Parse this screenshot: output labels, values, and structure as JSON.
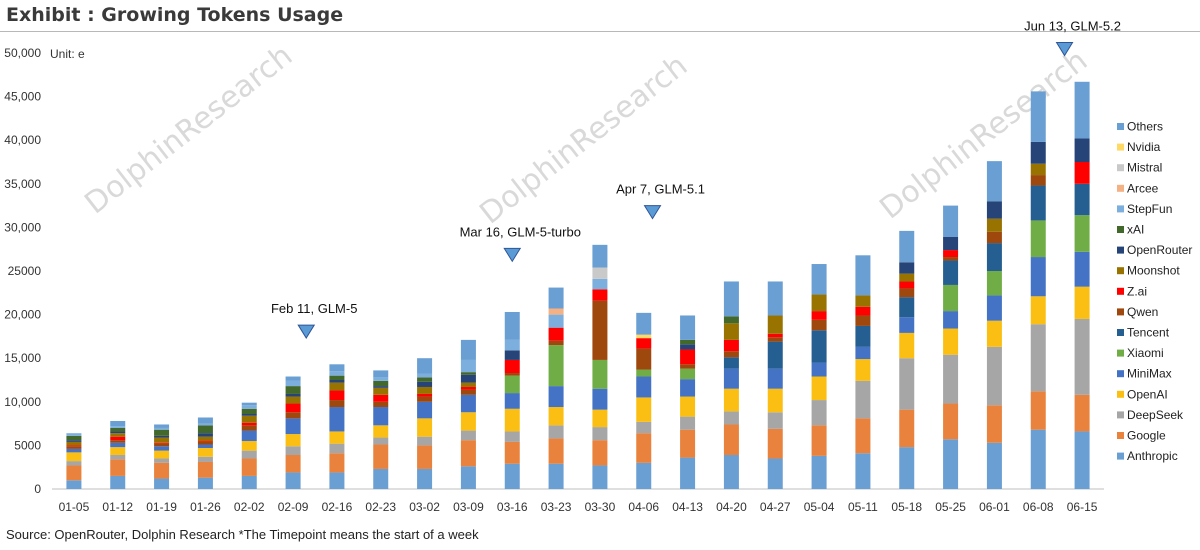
{
  "header": {
    "title": "Exhibit : Growing Tokens Usage"
  },
  "footer": {
    "source": "Source: OpenRouter, Dolphin Research *The Timepoint means the start of a week"
  },
  "watermark": "DolphinResearch",
  "chart_data": {
    "type": "bar",
    "stacked": true,
    "unit_label": "Unit: e",
    "ylim": [
      0,
      50000
    ],
    "yticks": [
      "0",
      "5000",
      "10,000",
      "15,000",
      "20,000",
      "25000",
      "30,000",
      "35,000",
      "40,000",
      "45,000",
      "50,000"
    ],
    "grid": false,
    "legend_position": "right",
    "categories": [
      "01-05",
      "01-12",
      "01-19",
      "01-26",
      "02-02",
      "02-09",
      "02-16",
      "02-23",
      "03-02",
      "03-09",
      "03-16",
      "03-23",
      "03-30",
      "04-06",
      "04-13",
      "04-20",
      "04-27",
      "05-04",
      "05-11",
      "05-18",
      "05-25",
      "06-01",
      "06-08",
      "06-15"
    ],
    "series": [
      {
        "name": "Anthropic",
        "color": "#6a9fd4",
        "values": [
          1000,
          1500,
          1200,
          1300,
          1500,
          1900,
          1900,
          2300,
          2300,
          2600,
          2900,
          2900,
          2700,
          3000,
          3600,
          3900,
          3500,
          3800,
          4100,
          4800,
          5700,
          5300,
          6800,
          6600
        ]
      },
      {
        "name": "Google",
        "color": "#e8823c",
        "values": [
          1700,
          1900,
          1800,
          1800,
          2000,
          2000,
          2200,
          2800,
          2700,
          3000,
          2500,
          2900,
          2900,
          3400,
          3200,
          3500,
          3400,
          3500,
          4000,
          4300,
          4100,
          4300,
          4400,
          4200
        ]
      },
      {
        "name": "DeepSeek",
        "color": "#a6a6a6",
        "values": [
          500,
          500,
          500,
          600,
          900,
          1000,
          1100,
          800,
          1000,
          1100,
          1200,
          1500,
          1500,
          1300,
          1500,
          1500,
          1900,
          2900,
          4300,
          5900,
          5600,
          6700,
          7700,
          8700
        ]
      },
      {
        "name": "OpenAI",
        "color": "#fbbf14",
        "values": [
          1000,
          900,
          900,
          1000,
          1100,
          1400,
          1400,
          1400,
          2100,
          2100,
          2600,
          2100,
          2000,
          2800,
          2300,
          2600,
          2700,
          2700,
          2500,
          2900,
          3000,
          3000,
          3200,
          3700
        ]
      },
      {
        "name": "MiniMax",
        "color": "#4472c4",
        "values": [
          400,
          500,
          500,
          400,
          1200,
          1800,
          2800,
          2100,
          1900,
          2000,
          1800,
          2400,
          2400,
          2400,
          2000,
          2300,
          2300,
          1600,
          1400,
          1800,
          2000,
          2900,
          4500,
          4000
        ]
      },
      {
        "name": "Xiaomi",
        "color": "#70ad47",
        "values": [
          0,
          0,
          0,
          0,
          0,
          0,
          0,
          0,
          0,
          0,
          2000,
          4700,
          3300,
          800,
          1200,
          0,
          0,
          0,
          0,
          0,
          3000,
          2800,
          4200,
          4200
        ]
      },
      {
        "name": "Tencent",
        "color": "#255e91",
        "values": [
          0,
          0,
          0,
          0,
          0,
          0,
          0,
          0,
          0,
          0,
          0,
          0,
          0,
          0,
          0,
          1300,
          3100,
          3700,
          2400,
          2300,
          2800,
          3200,
          4000,
          3600
        ]
      },
      {
        "name": "Qwen",
        "color": "#9e480e",
        "values": [
          300,
          300,
          300,
          300,
          600,
          700,
          800,
          600,
          600,
          600,
          300,
          500,
          6800,
          2400,
          500,
          700,
          500,
          1200,
          1200,
          1000,
          400,
          1300,
          1200,
          0
        ]
      },
      {
        "name": "Z.ai",
        "color": "#ff0000",
        "values": [
          100,
          400,
          100,
          100,
          300,
          1000,
          1100,
          800,
          300,
          300,
          1500,
          1500,
          1300,
          1200,
          1700,
          1300,
          400,
          1000,
          1000,
          800,
          800,
          0,
          0,
          2500
        ]
      },
      {
        "name": "Moonshot",
        "color": "#997300",
        "values": [
          400,
          400,
          600,
          500,
          800,
          800,
          900,
          800,
          800,
          500,
          0,
          0,
          0,
          0,
          0,
          1900,
          2100,
          1900,
          1300,
          900,
          0,
          1500,
          1300,
          0
        ]
      },
      {
        "name": "OpenRouter",
        "color": "#264478",
        "values": [
          200,
          200,
          200,
          400,
          200,
          300,
          300,
          200,
          600,
          900,
          1100,
          0,
          0,
          0,
          600,
          0,
          0,
          0,
          0,
          1300,
          1500,
          2000,
          2500,
          2700
        ]
      },
      {
        "name": "xAI",
        "color": "#43682b",
        "values": [
          500,
          400,
          700,
          900,
          600,
          900,
          500,
          600,
          500,
          300,
          0,
          0,
          0,
          0,
          500,
          800,
          0,
          0,
          0,
          0,
          0,
          0,
          0,
          0
        ]
      },
      {
        "name": "StepFun",
        "color": "#7cafdd",
        "values": [
          300,
          200,
          200,
          200,
          400,
          600,
          500,
          400,
          400,
          1400,
          1200,
          1500,
          1200,
          0,
          0,
          0,
          0,
          0,
          0,
          0,
          0,
          0,
          0,
          0
        ]
      },
      {
        "name": "Arcee",
        "color": "#f4b183",
        "values": [
          0,
          0,
          0,
          0,
          0,
          0,
          0,
          0,
          0,
          0,
          0,
          700,
          0,
          0,
          0,
          0,
          0,
          0,
          0,
          0,
          0,
          0,
          0,
          0
        ]
      },
      {
        "name": "Mistral",
        "color": "#c9c9c9",
        "values": [
          0,
          0,
          0,
          0,
          0,
          0,
          0,
          0,
          0,
          0,
          0,
          0,
          1300,
          0,
          0,
          0,
          0,
          0,
          0,
          0,
          0,
          0,
          0,
          0
        ]
      },
      {
        "name": "Nvidia",
        "color": "#ffd966",
        "values": [
          0,
          0,
          0,
          0,
          0,
          0,
          0,
          0,
          0,
          0,
          0,
          0,
          0,
          400,
          0,
          0,
          0,
          0,
          0,
          0,
          0,
          0,
          0,
          0
        ]
      },
      {
        "name": "Others",
        "color": "#6a9fd4",
        "values": [
          0,
          600,
          400,
          700,
          300,
          500,
          800,
          800,
          1800,
          2300,
          3200,
          2400,
          2600,
          2500,
          2800,
          4000,
          3900,
          3500,
          4600,
          3600,
          3600,
          4600,
          5800,
          6500
        ]
      }
    ],
    "annotations": [
      {
        "label": "Feb 11, GLM-5",
        "category_index": 5.3
      },
      {
        "label": "Mar 16, GLM-5-turbo",
        "category_index": 10.0
      },
      {
        "label": "Apr 7, GLM-5.1",
        "category_index": 13.2
      },
      {
        "label": "Jun 13, GLM-5.2",
        "category_index": 22.6
      }
    ]
  }
}
